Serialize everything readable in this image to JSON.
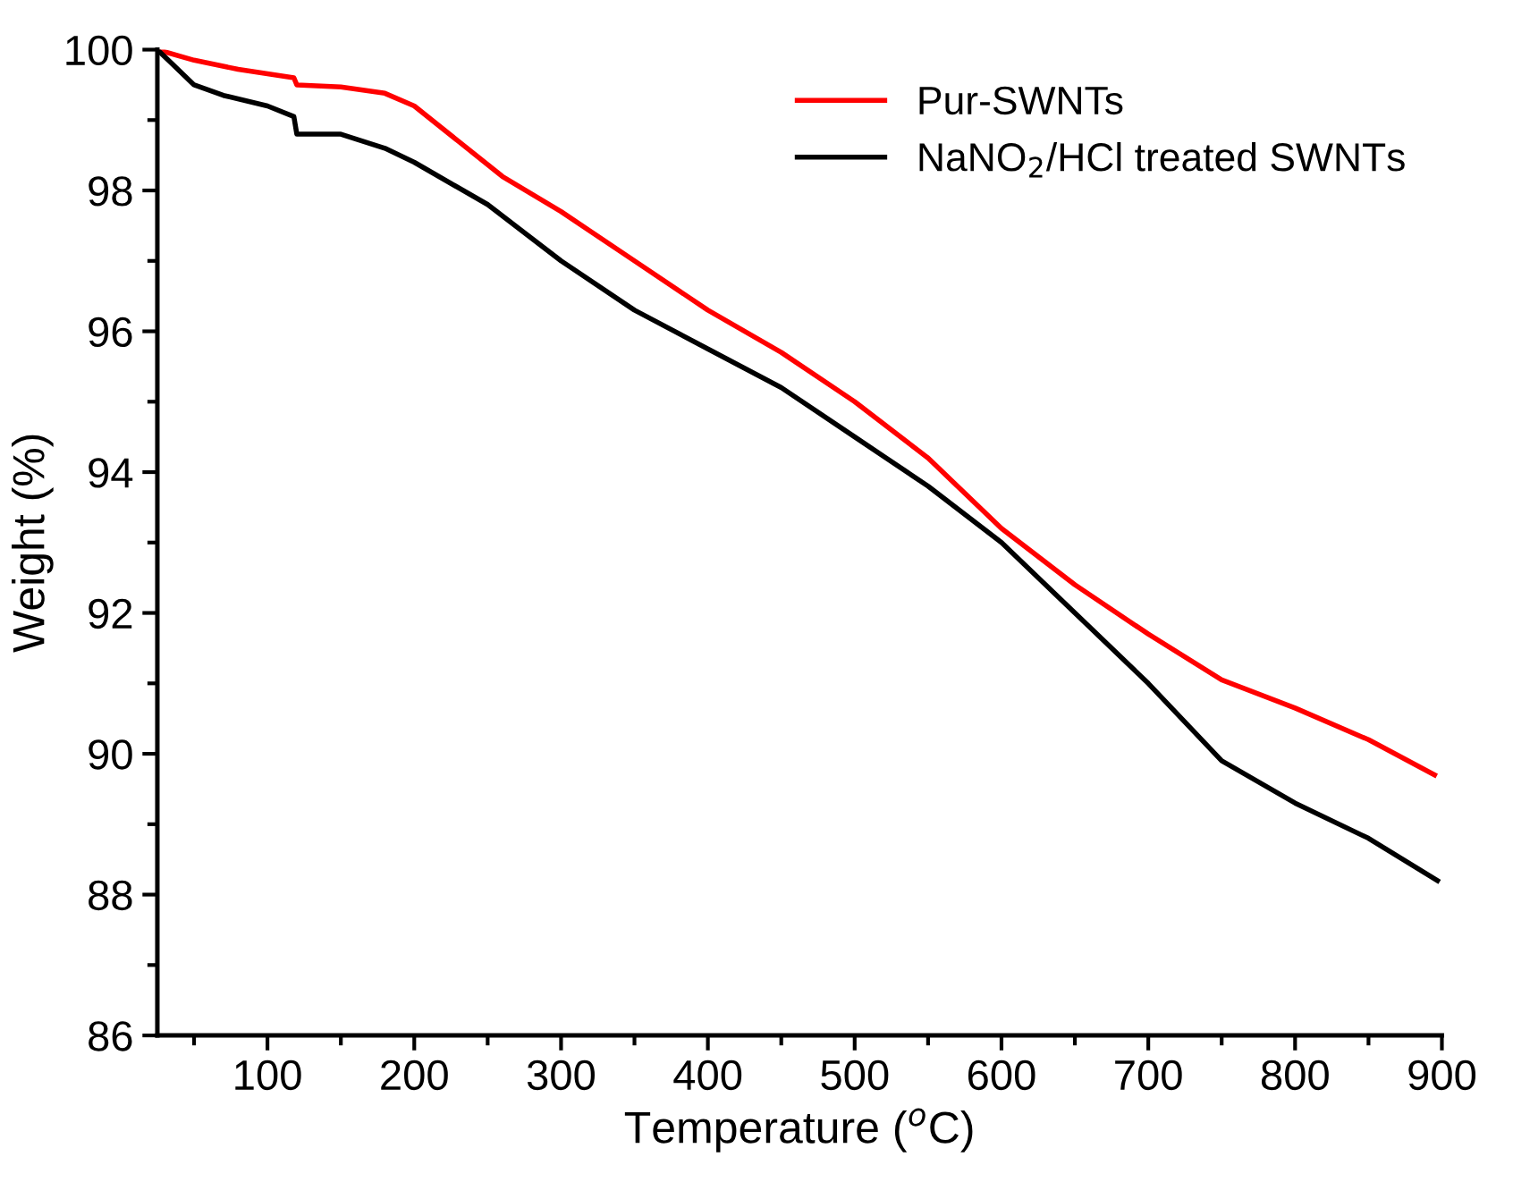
{
  "chart_data": {
    "type": "line",
    "xlabel": "Temperature ($^{o}$C)",
    "ylabel": "Weight (%)",
    "xlim": [
      25,
      900
    ],
    "xticks": [
      100,
      200,
      300,
      400,
      500,
      600,
      700,
      800,
      900
    ],
    "ylim": [
      86,
      100
    ],
    "yticks": [
      86,
      88,
      90,
      92,
      94,
      96,
      98,
      100
    ],
    "grid": false,
    "legend": "top right",
    "line_style": "solid",
    "marker": "none",
    "series": [
      {
        "name": "Pur-SWNTs",
        "color": "#ff0000",
        "x": [
          25,
          50,
          80,
          118,
          120,
          150,
          180,
          200,
          230,
          260,
          300,
          350,
          400,
          450,
          500,
          550,
          600,
          650,
          700,
          750,
          800,
          850,
          895
        ],
        "values": [
          100,
          99.85,
          99.72,
          99.6,
          99.5,
          99.47,
          99.38,
          99.2,
          98.7,
          98.2,
          97.7,
          97.0,
          96.3,
          95.7,
          95.0,
          94.2,
          93.2,
          92.4,
          91.7,
          91.05,
          90.65,
          90.2,
          89.7
        ]
      },
      {
        "name": "NaNO$_{2}$/HCl treated SWNTs",
        "color": "#000000",
        "x": [
          25,
          35,
          50,
          70,
          100,
          118,
          120,
          150,
          180,
          200,
          250,
          300,
          350,
          400,
          450,
          500,
          550,
          600,
          650,
          700,
          750,
          800,
          850,
          897
        ],
        "values": [
          100,
          99.8,
          99.5,
          99.35,
          99.2,
          99.05,
          98.8,
          98.8,
          98.6,
          98.4,
          97.8,
          97.0,
          96.3,
          95.75,
          95.2,
          94.5,
          93.8,
          93.0,
          92.0,
          91.0,
          89.9,
          89.3,
          88.8,
          88.2
        ]
      }
    ]
  }
}
